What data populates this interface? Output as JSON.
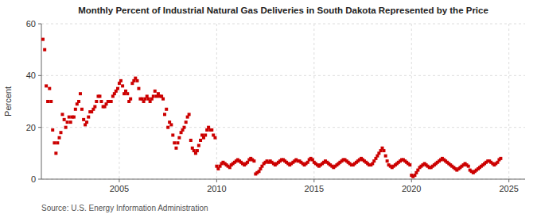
{
  "chart_data": {
    "type": "scatter",
    "title": "Monthly Percent of Industrial Natural Gas Deliveries in South Dakota Represented by the Price",
    "y_label": "Percent",
    "source": "Source: U.S. Energy Information Administration",
    "color": "#cc0000",
    "marker": "square",
    "grid": true,
    "xlim": [
      2001.0,
      2025.83
    ],
    "xticks": [
      2005,
      2010,
      2015,
      2020,
      2025
    ],
    "ylim": [
      0,
      60
    ],
    "yticks": [
      0,
      20,
      40,
      60
    ],
    "x": [
      2001.08,
      2001.17,
      2001.25,
      2001.33,
      2001.42,
      2001.5,
      2001.58,
      2001.67,
      2001.75,
      2001.83,
      2001.92,
      2002.0,
      2002.08,
      2002.17,
      2002.25,
      2002.33,
      2002.42,
      2002.5,
      2002.58,
      2002.67,
      2002.75,
      2002.83,
      2002.92,
      2003.0,
      2003.08,
      2003.17,
      2003.25,
      2003.33,
      2003.42,
      2003.5,
      2003.58,
      2003.67,
      2003.75,
      2003.83,
      2003.92,
      2004.0,
      2004.08,
      2004.17,
      2004.25,
      2004.33,
      2004.42,
      2004.5,
      2004.58,
      2004.67,
      2004.75,
      2004.83,
      2004.92,
      2005.0,
      2005.08,
      2005.17,
      2005.25,
      2005.33,
      2005.42,
      2005.5,
      2005.58,
      2005.67,
      2005.75,
      2005.83,
      2005.92,
      2006.0,
      2006.08,
      2006.17,
      2006.25,
      2006.33,
      2006.42,
      2006.5,
      2006.58,
      2006.67,
      2006.75,
      2006.83,
      2006.92,
      2007.0,
      2007.08,
      2007.17,
      2007.25,
      2007.33,
      2007.42,
      2007.5,
      2007.58,
      2007.67,
      2007.75,
      2007.83,
      2007.92,
      2008.0,
      2008.08,
      2008.17,
      2008.25,
      2008.33,
      2008.42,
      2008.5,
      2008.58,
      2008.67,
      2008.75,
      2008.83,
      2008.92,
      2009.0,
      2009.08,
      2009.17,
      2009.25,
      2009.33,
      2009.42,
      2009.5,
      2009.58,
      2009.67,
      2009.75,
      2009.83,
      2009.92,
      2010.0,
      2010.08,
      2010.17,
      2010.25,
      2010.33,
      2010.42,
      2010.5,
      2010.58,
      2010.67,
      2010.75,
      2010.83,
      2010.92,
      2011.0,
      2011.08,
      2011.17,
      2011.25,
      2011.33,
      2011.42,
      2011.5,
      2011.58,
      2011.67,
      2011.75,
      2011.83,
      2011.92,
      2012.0,
      2012.08,
      2012.17,
      2012.25,
      2012.33,
      2012.42,
      2012.5,
      2012.58,
      2012.67,
      2012.75,
      2012.83,
      2012.92,
      2013.0,
      2013.08,
      2013.17,
      2013.25,
      2013.33,
      2013.42,
      2013.5,
      2013.58,
      2013.67,
      2013.75,
      2013.83,
      2013.92,
      2014.0,
      2014.08,
      2014.17,
      2014.25,
      2014.33,
      2014.42,
      2014.5,
      2014.58,
      2014.67,
      2014.75,
      2014.83,
      2014.92,
      2015.0,
      2015.08,
      2015.17,
      2015.25,
      2015.33,
      2015.42,
      2015.5,
      2015.58,
      2015.67,
      2015.75,
      2015.83,
      2015.92,
      2016.0,
      2016.08,
      2016.17,
      2016.25,
      2016.33,
      2016.42,
      2016.5,
      2016.58,
      2016.67,
      2016.75,
      2016.83,
      2016.92,
      2017.0,
      2017.08,
      2017.17,
      2017.25,
      2017.33,
      2017.42,
      2017.5,
      2017.58,
      2017.67,
      2017.75,
      2017.83,
      2017.92,
      2018.0,
      2018.08,
      2018.17,
      2018.25,
      2018.33,
      2018.42,
      2018.5,
      2018.58,
      2018.67,
      2018.75,
      2018.83,
      2018.92,
      2019.0,
      2019.08,
      2019.17,
      2019.25,
      2019.33,
      2019.42,
      2019.5,
      2019.58,
      2019.67,
      2019.75,
      2019.83,
      2019.92,
      2020.0,
      2020.08,
      2020.17,
      2020.25,
      2020.33,
      2020.42,
      2020.5,
      2020.58,
      2020.67,
      2020.75,
      2020.83,
      2020.92,
      2021.0,
      2021.08,
      2021.17,
      2021.25,
      2021.33,
      2021.42,
      2021.5,
      2021.58,
      2021.67,
      2021.75,
      2021.83,
      2021.92,
      2022.0,
      2022.08,
      2022.17,
      2022.25,
      2022.33,
      2022.42,
      2022.5,
      2022.58,
      2022.67,
      2022.75,
      2022.83,
      2022.92,
      2023.0,
      2023.08,
      2023.17,
      2023.25,
      2023.33,
      2023.42,
      2023.5,
      2023.58,
      2023.67,
      2023.75,
      2023.83,
      2023.92,
      2024.0,
      2024.08,
      2024.17,
      2024.25,
      2024.33,
      2024.42,
      2024.5,
      2024.58
    ],
    "values": [
      54.0,
      50.0,
      36.0,
      30.0,
      35.0,
      30.0,
      19.0,
      14.0,
      10.0,
      14.0,
      16.0,
      18.0,
      25.0,
      23.0,
      20.0,
      22.0,
      24.0,
      22.0,
      24.0,
      24.0,
      27.0,
      29.0,
      30.0,
      33.0,
      27.0,
      23.0,
      21.0,
      22.0,
      24.0,
      26.0,
      26.0,
      27.0,
      28.0,
      30.0,
      32.0,
      32.0,
      30.0,
      28.0,
      28.0,
      29.0,
      30.0,
      30.0,
      30.0,
      32.0,
      33.0,
      34.0,
      35.0,
      37.0,
      38.0,
      36.0,
      33.0,
      34.0,
      33.0,
      30.0,
      31.0,
      37.0,
      38.0,
      39.0,
      38.0,
      35.0,
      31.0,
      31.0,
      30.0,
      31.0,
      32.0,
      31.0,
      30.0,
      31.0,
      32.0,
      34.0,
      32.0,
      33.0,
      32.0,
      32.0,
      31.0,
      25.0,
      27.0,
      20.0,
      22.0,
      21.0,
      17.0,
      14.0,
      12.0,
      14.0,
      16.0,
      18.0,
      19.0,
      20.0,
      22.0,
      24.0,
      25.0,
      15.0,
      12.0,
      11.0,
      10.0,
      11.0,
      13.0,
      15.0,
      17.0,
      16.0,
      17.0,
      19.0,
      20.0,
      19.0,
      19.0,
      17.0,
      16.0,
      5.0,
      4.0,
      5.0,
      6.0,
      6.5,
      6.0,
      5.5,
      5.0,
      4.5,
      5.5,
      6.0,
      6.5,
      7.0,
      7.5,
      7.0,
      6.5,
      6.0,
      5.5,
      6.0,
      6.5,
      7.5,
      8.0,
      7.5,
      7.0,
      2.0,
      2.5,
      3.0,
      4.0,
      5.0,
      6.0,
      6.5,
      7.0,
      6.5,
      7.0,
      6.5,
      6.0,
      5.5,
      6.0,
      6.5,
      7.0,
      7.5,
      7.5,
      7.0,
      6.5,
      6.0,
      5.5,
      6.0,
      6.5,
      7.0,
      7.5,
      7.0,
      7.0,
      6.5,
      6.0,
      5.5,
      6.0,
      6.5,
      7.5,
      8.0,
      7.5,
      6.5,
      6.0,
      5.5,
      5.0,
      5.5,
      6.0,
      6.5,
      7.0,
      6.5,
      6.0,
      5.5,
      5.0,
      4.5,
      5.0,
      5.5,
      6.0,
      6.5,
      7.0,
      7.5,
      7.5,
      7.0,
      6.5,
      6.0,
      5.5,
      5.5,
      6.0,
      6.5,
      7.0,
      7.5,
      8.0,
      7.5,
      7.0,
      6.5,
      6.0,
      5.5,
      5.5,
      6.0,
      7.0,
      8.0,
      9.0,
      10.0,
      11.0,
      12.0,
      11.0,
      9.0,
      7.0,
      5.5,
      5.0,
      4.5,
      5.0,
      5.5,
      6.0,
      6.5,
      7.0,
      7.5,
      7.5,
      7.0,
      6.5,
      6.0,
      5.5,
      1.5,
      1.0,
      1.5,
      2.5,
      3.5,
      4.5,
      5.0,
      5.5,
      6.0,
      5.5,
      5.0,
      4.5,
      4.5,
      5.0,
      5.5,
      6.0,
      6.5,
      7.0,
      7.5,
      8.0,
      7.5,
      7.0,
      6.5,
      6.0,
      5.5,
      5.0,
      4.5,
      4.0,
      3.5,
      4.0,
      4.5,
      5.0,
      5.5,
      6.0,
      5.5,
      5.0,
      3.5,
      3.0,
      2.5,
      3.0,
      3.5,
      4.0,
      4.5,
      5.0,
      5.5,
      6.0,
      6.5,
      7.0,
      7.0,
      6.5,
      6.0,
      5.5,
      6.0,
      6.5,
      7.5,
      8.0
    ]
  }
}
